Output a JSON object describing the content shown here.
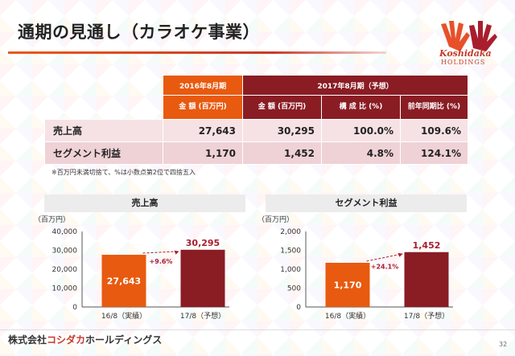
{
  "title": "通期の見通し（カラオケ事業）",
  "logo": {
    "name": "Koshidaka",
    "sub": "HOLDINGS"
  },
  "table": {
    "h_2016": "2016年8月期",
    "h_2017": "2017年8月期（予想）",
    "sub_amount_2016": "金 額 (百万円)",
    "sub_amount_2017": "金 額 (百万円)",
    "sub_ratio": "構 成 比 (%)",
    "sub_yoy": "前年同期比 (%)",
    "rows": [
      {
        "label": "売上高",
        "v2016": "27,643",
        "v2017": "30,295",
        "ratio": "100.0%",
        "yoy": "109.6%"
      },
      {
        "label": "セグメント利益",
        "v2016": "1,170",
        "v2017": "1,452",
        "ratio": "4.8%",
        "yoy": "124.1%"
      }
    ]
  },
  "note": "※百万円未満切捨て、%は小数点第2位で四捨五入",
  "footer": {
    "company": "株式会社",
    "brand": "コシダカ",
    "rest": "ホールディングス"
  },
  "page": "32",
  "colors": {
    "orange": "#e85a0f",
    "darkred": "#8a1c24"
  },
  "chart_data": [
    {
      "type": "bar",
      "title": "売上高",
      "unit": "（百万円）",
      "categories": [
        "16/8（実績）",
        "17/8（予想）"
      ],
      "values": [
        27643,
        30295
      ],
      "labels": [
        "27,643",
        "30,295"
      ],
      "growth": "+9.6%",
      "ylim": [
        0,
        40000
      ],
      "ticks": [
        "0",
        "10,000",
        "20,000",
        "30,000",
        "40,000"
      ]
    },
    {
      "type": "bar",
      "title": "セグメント利益",
      "unit": "（百万円）",
      "categories": [
        "16/8（実績）",
        "17/8（予想）"
      ],
      "values": [
        1170,
        1452
      ],
      "labels": [
        "1,170",
        "1,452"
      ],
      "growth": "+24.1%",
      "ylim": [
        0,
        2000
      ],
      "ticks": [
        "0",
        "500",
        "1,000",
        "1,500",
        "2,000"
      ]
    }
  ]
}
